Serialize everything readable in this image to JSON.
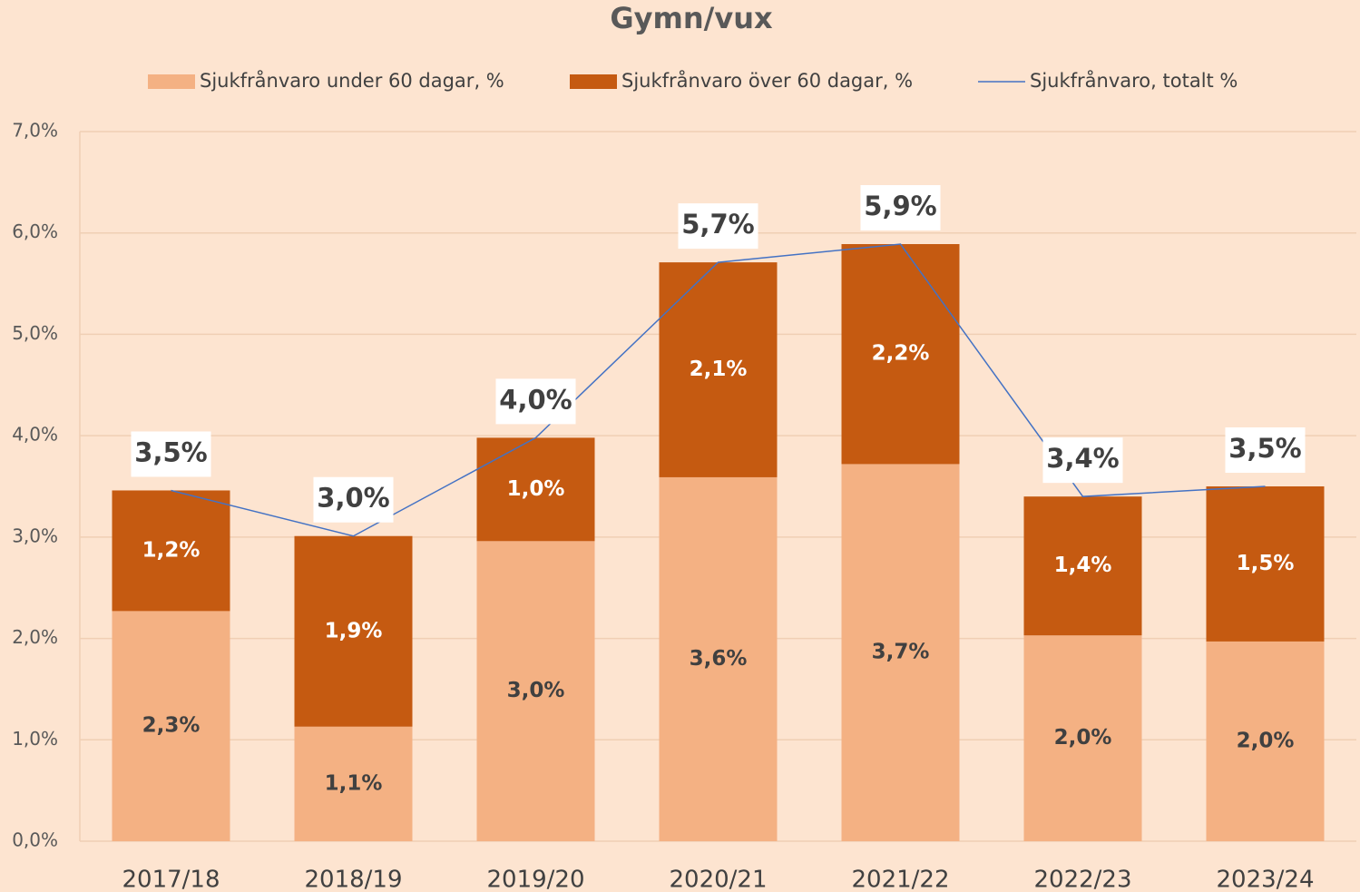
{
  "chart_data": {
    "type": "bar",
    "stacked": true,
    "title": "Gymn/vux",
    "categories": [
      "2017/18",
      "2018/19",
      "2019/20",
      "2020/21",
      "2021/22",
      "2022/23",
      "2023/24"
    ],
    "series": [
      {
        "name": "Sjukfrånvaro under 60 dagar, %",
        "type": "bar",
        "color": "#f4b183",
        "values": [
          2.27,
          1.13,
          2.96,
          3.59,
          3.72,
          2.03,
          1.97
        ],
        "value_labels": [
          "2,3%",
          "1,1%",
          "3,0%",
          "3,6%",
          "3,7%",
          "2,0%",
          "2,0%"
        ]
      },
      {
        "name": "Sjukfrånvaro över 60 dagar, %",
        "type": "bar",
        "color": "#c55a11",
        "values": [
          1.19,
          1.88,
          1.02,
          2.12,
          2.17,
          1.37,
          1.53
        ],
        "value_labels": [
          "1,2%",
          "1,9%",
          "1,0%",
          "2,1%",
          "2,2%",
          "1,4%",
          "1,5%"
        ]
      },
      {
        "name": "Sjukfrånvaro, totalt %",
        "type": "line",
        "color": "#4472c4",
        "values": [
          3.46,
          3.01,
          3.98,
          5.71,
          5.89,
          3.4,
          3.5
        ],
        "value_labels": [
          "3,5%",
          "3,0%",
          "4,0%",
          "5,7%",
          "5,9%",
          "3,4%",
          "3,5%"
        ]
      }
    ],
    "ylim": [
      0,
      7
    ],
    "yticks": [
      {
        "value": 0,
        "label": "0,0%"
      },
      {
        "value": 1,
        "label": "1,0%"
      },
      {
        "value": 2,
        "label": "2,0%"
      },
      {
        "value": 3,
        "label": "3,0%"
      },
      {
        "value": 4,
        "label": "4,0%"
      },
      {
        "value": 5,
        "label": "5,0%"
      },
      {
        "value": 6,
        "label": "6,0%"
      },
      {
        "value": 7,
        "label": "7,0%"
      }
    ],
    "grid": true,
    "legend": "top"
  }
}
